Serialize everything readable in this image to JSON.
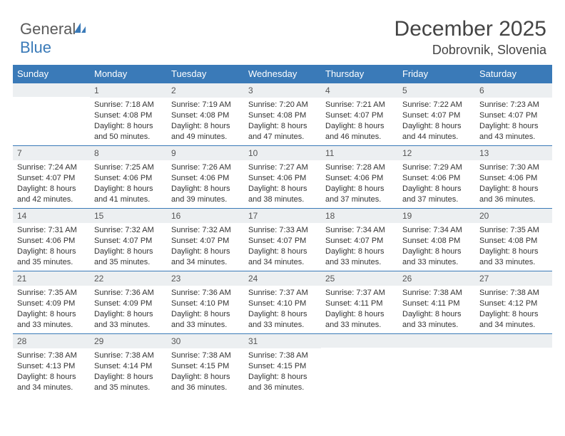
{
  "logo": {
    "word1": "General",
    "word2": "Blue"
  },
  "header": {
    "title": "December 2025",
    "location": "Dobrovnik, Slovenia"
  },
  "columns": [
    "Sunday",
    "Monday",
    "Tuesday",
    "Wednesday",
    "Thursday",
    "Friday",
    "Saturday"
  ],
  "colors": {
    "header_bg": "#3a7ab8",
    "header_text": "#ffffff",
    "daynum_bg": "#eceff1",
    "row_border": "#3a7ab8",
    "page_bg": "#ffffff"
  },
  "weeks": [
    [
      {
        "n": "",
        "lines": []
      },
      {
        "n": "1",
        "lines": [
          "Sunrise: 7:18 AM",
          "Sunset: 4:08 PM",
          "Daylight: 8 hours",
          "and 50 minutes."
        ]
      },
      {
        "n": "2",
        "lines": [
          "Sunrise: 7:19 AM",
          "Sunset: 4:08 PM",
          "Daylight: 8 hours",
          "and 49 minutes."
        ]
      },
      {
        "n": "3",
        "lines": [
          "Sunrise: 7:20 AM",
          "Sunset: 4:08 PM",
          "Daylight: 8 hours",
          "and 47 minutes."
        ]
      },
      {
        "n": "4",
        "lines": [
          "Sunrise: 7:21 AM",
          "Sunset: 4:07 PM",
          "Daylight: 8 hours",
          "and 46 minutes."
        ]
      },
      {
        "n": "5",
        "lines": [
          "Sunrise: 7:22 AM",
          "Sunset: 4:07 PM",
          "Daylight: 8 hours",
          "and 44 minutes."
        ]
      },
      {
        "n": "6",
        "lines": [
          "Sunrise: 7:23 AM",
          "Sunset: 4:07 PM",
          "Daylight: 8 hours",
          "and 43 minutes."
        ]
      }
    ],
    [
      {
        "n": "7",
        "lines": [
          "Sunrise: 7:24 AM",
          "Sunset: 4:07 PM",
          "Daylight: 8 hours",
          "and 42 minutes."
        ]
      },
      {
        "n": "8",
        "lines": [
          "Sunrise: 7:25 AM",
          "Sunset: 4:06 PM",
          "Daylight: 8 hours",
          "and 41 minutes."
        ]
      },
      {
        "n": "9",
        "lines": [
          "Sunrise: 7:26 AM",
          "Sunset: 4:06 PM",
          "Daylight: 8 hours",
          "and 39 minutes."
        ]
      },
      {
        "n": "10",
        "lines": [
          "Sunrise: 7:27 AM",
          "Sunset: 4:06 PM",
          "Daylight: 8 hours",
          "and 38 minutes."
        ]
      },
      {
        "n": "11",
        "lines": [
          "Sunrise: 7:28 AM",
          "Sunset: 4:06 PM",
          "Daylight: 8 hours",
          "and 37 minutes."
        ]
      },
      {
        "n": "12",
        "lines": [
          "Sunrise: 7:29 AM",
          "Sunset: 4:06 PM",
          "Daylight: 8 hours",
          "and 37 minutes."
        ]
      },
      {
        "n": "13",
        "lines": [
          "Sunrise: 7:30 AM",
          "Sunset: 4:06 PM",
          "Daylight: 8 hours",
          "and 36 minutes."
        ]
      }
    ],
    [
      {
        "n": "14",
        "lines": [
          "Sunrise: 7:31 AM",
          "Sunset: 4:06 PM",
          "Daylight: 8 hours",
          "and 35 minutes."
        ]
      },
      {
        "n": "15",
        "lines": [
          "Sunrise: 7:32 AM",
          "Sunset: 4:07 PM",
          "Daylight: 8 hours",
          "and 35 minutes."
        ]
      },
      {
        "n": "16",
        "lines": [
          "Sunrise: 7:32 AM",
          "Sunset: 4:07 PM",
          "Daylight: 8 hours",
          "and 34 minutes."
        ]
      },
      {
        "n": "17",
        "lines": [
          "Sunrise: 7:33 AM",
          "Sunset: 4:07 PM",
          "Daylight: 8 hours",
          "and 34 minutes."
        ]
      },
      {
        "n": "18",
        "lines": [
          "Sunrise: 7:34 AM",
          "Sunset: 4:07 PM",
          "Daylight: 8 hours",
          "and 33 minutes."
        ]
      },
      {
        "n": "19",
        "lines": [
          "Sunrise: 7:34 AM",
          "Sunset: 4:08 PM",
          "Daylight: 8 hours",
          "and 33 minutes."
        ]
      },
      {
        "n": "20",
        "lines": [
          "Sunrise: 7:35 AM",
          "Sunset: 4:08 PM",
          "Daylight: 8 hours",
          "and 33 minutes."
        ]
      }
    ],
    [
      {
        "n": "21",
        "lines": [
          "Sunrise: 7:35 AM",
          "Sunset: 4:09 PM",
          "Daylight: 8 hours",
          "and 33 minutes."
        ]
      },
      {
        "n": "22",
        "lines": [
          "Sunrise: 7:36 AM",
          "Sunset: 4:09 PM",
          "Daylight: 8 hours",
          "and 33 minutes."
        ]
      },
      {
        "n": "23",
        "lines": [
          "Sunrise: 7:36 AM",
          "Sunset: 4:10 PM",
          "Daylight: 8 hours",
          "and 33 minutes."
        ]
      },
      {
        "n": "24",
        "lines": [
          "Sunrise: 7:37 AM",
          "Sunset: 4:10 PM",
          "Daylight: 8 hours",
          "and 33 minutes."
        ]
      },
      {
        "n": "25",
        "lines": [
          "Sunrise: 7:37 AM",
          "Sunset: 4:11 PM",
          "Daylight: 8 hours",
          "and 33 minutes."
        ]
      },
      {
        "n": "26",
        "lines": [
          "Sunrise: 7:38 AM",
          "Sunset: 4:11 PM",
          "Daylight: 8 hours",
          "and 33 minutes."
        ]
      },
      {
        "n": "27",
        "lines": [
          "Sunrise: 7:38 AM",
          "Sunset: 4:12 PM",
          "Daylight: 8 hours",
          "and 34 minutes."
        ]
      }
    ],
    [
      {
        "n": "28",
        "lines": [
          "Sunrise: 7:38 AM",
          "Sunset: 4:13 PM",
          "Daylight: 8 hours",
          "and 34 minutes."
        ]
      },
      {
        "n": "29",
        "lines": [
          "Sunrise: 7:38 AM",
          "Sunset: 4:14 PM",
          "Daylight: 8 hours",
          "and 35 minutes."
        ]
      },
      {
        "n": "30",
        "lines": [
          "Sunrise: 7:38 AM",
          "Sunset: 4:15 PM",
          "Daylight: 8 hours",
          "and 36 minutes."
        ]
      },
      {
        "n": "31",
        "lines": [
          "Sunrise: 7:38 AM",
          "Sunset: 4:15 PM",
          "Daylight: 8 hours",
          "and 36 minutes."
        ]
      },
      {
        "n": "",
        "lines": []
      },
      {
        "n": "",
        "lines": []
      },
      {
        "n": "",
        "lines": []
      }
    ]
  ]
}
